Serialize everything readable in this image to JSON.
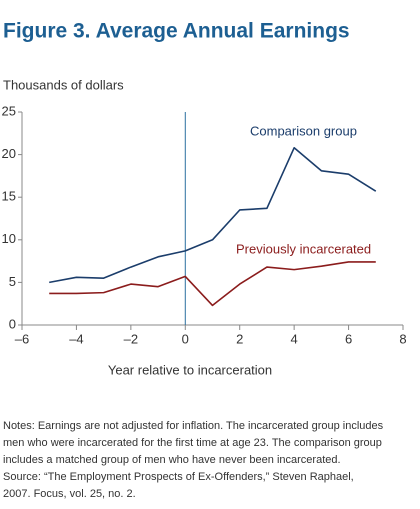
{
  "chart_data": {
    "type": "line",
    "title": "Figure 3. Average Annual Earnings",
    "y_label": "Thousands of dollars",
    "x_label": "Year relative to incarceration",
    "x": [
      -5,
      -4,
      -3,
      -2,
      -1,
      0,
      1,
      2,
      3,
      4,
      5,
      6,
      7
    ],
    "series": [
      {
        "name": "Comparison group",
        "color": "#1b3d6b",
        "values": [
          5.0,
          5.6,
          5.5,
          6.8,
          8.0,
          8.7,
          10.0,
          13.5,
          13.7,
          20.8,
          18.1,
          17.7,
          15.7
        ]
      },
      {
        "name": "Previously incarcerated",
        "color": "#8b1c1c",
        "values": [
          3.7,
          3.7,
          3.8,
          4.8,
          4.5,
          5.7,
          2.3,
          4.8,
          6.8,
          6.5,
          6.9,
          7.4,
          7.4
        ]
      }
    ],
    "xlim": [
      -6,
      8
    ],
    "xticks": [
      {
        "value": -6,
        "label": "–6"
      },
      {
        "value": -4,
        "label": "–4"
      },
      {
        "value": -2,
        "label": "–2"
      },
      0,
      2,
      4,
      6,
      8
    ],
    "ylim": [
      0,
      25
    ],
    "yticks": [
      0,
      5,
      10,
      15,
      20,
      25
    ],
    "vline": 0,
    "grid": false,
    "notes": [
      "Notes: Earnings are not adjusted for inflation. The incarcerated group includes",
      "men who were incarcerated for the first time at age 23. The comparison group",
      "includes a matched group of men who have never been incarcerated.",
      "Source: “The Employment Prospects of Ex-Offenders,” Steven Raphael,",
      "2007.  Focus, vol. 25, no. 2."
    ]
  }
}
